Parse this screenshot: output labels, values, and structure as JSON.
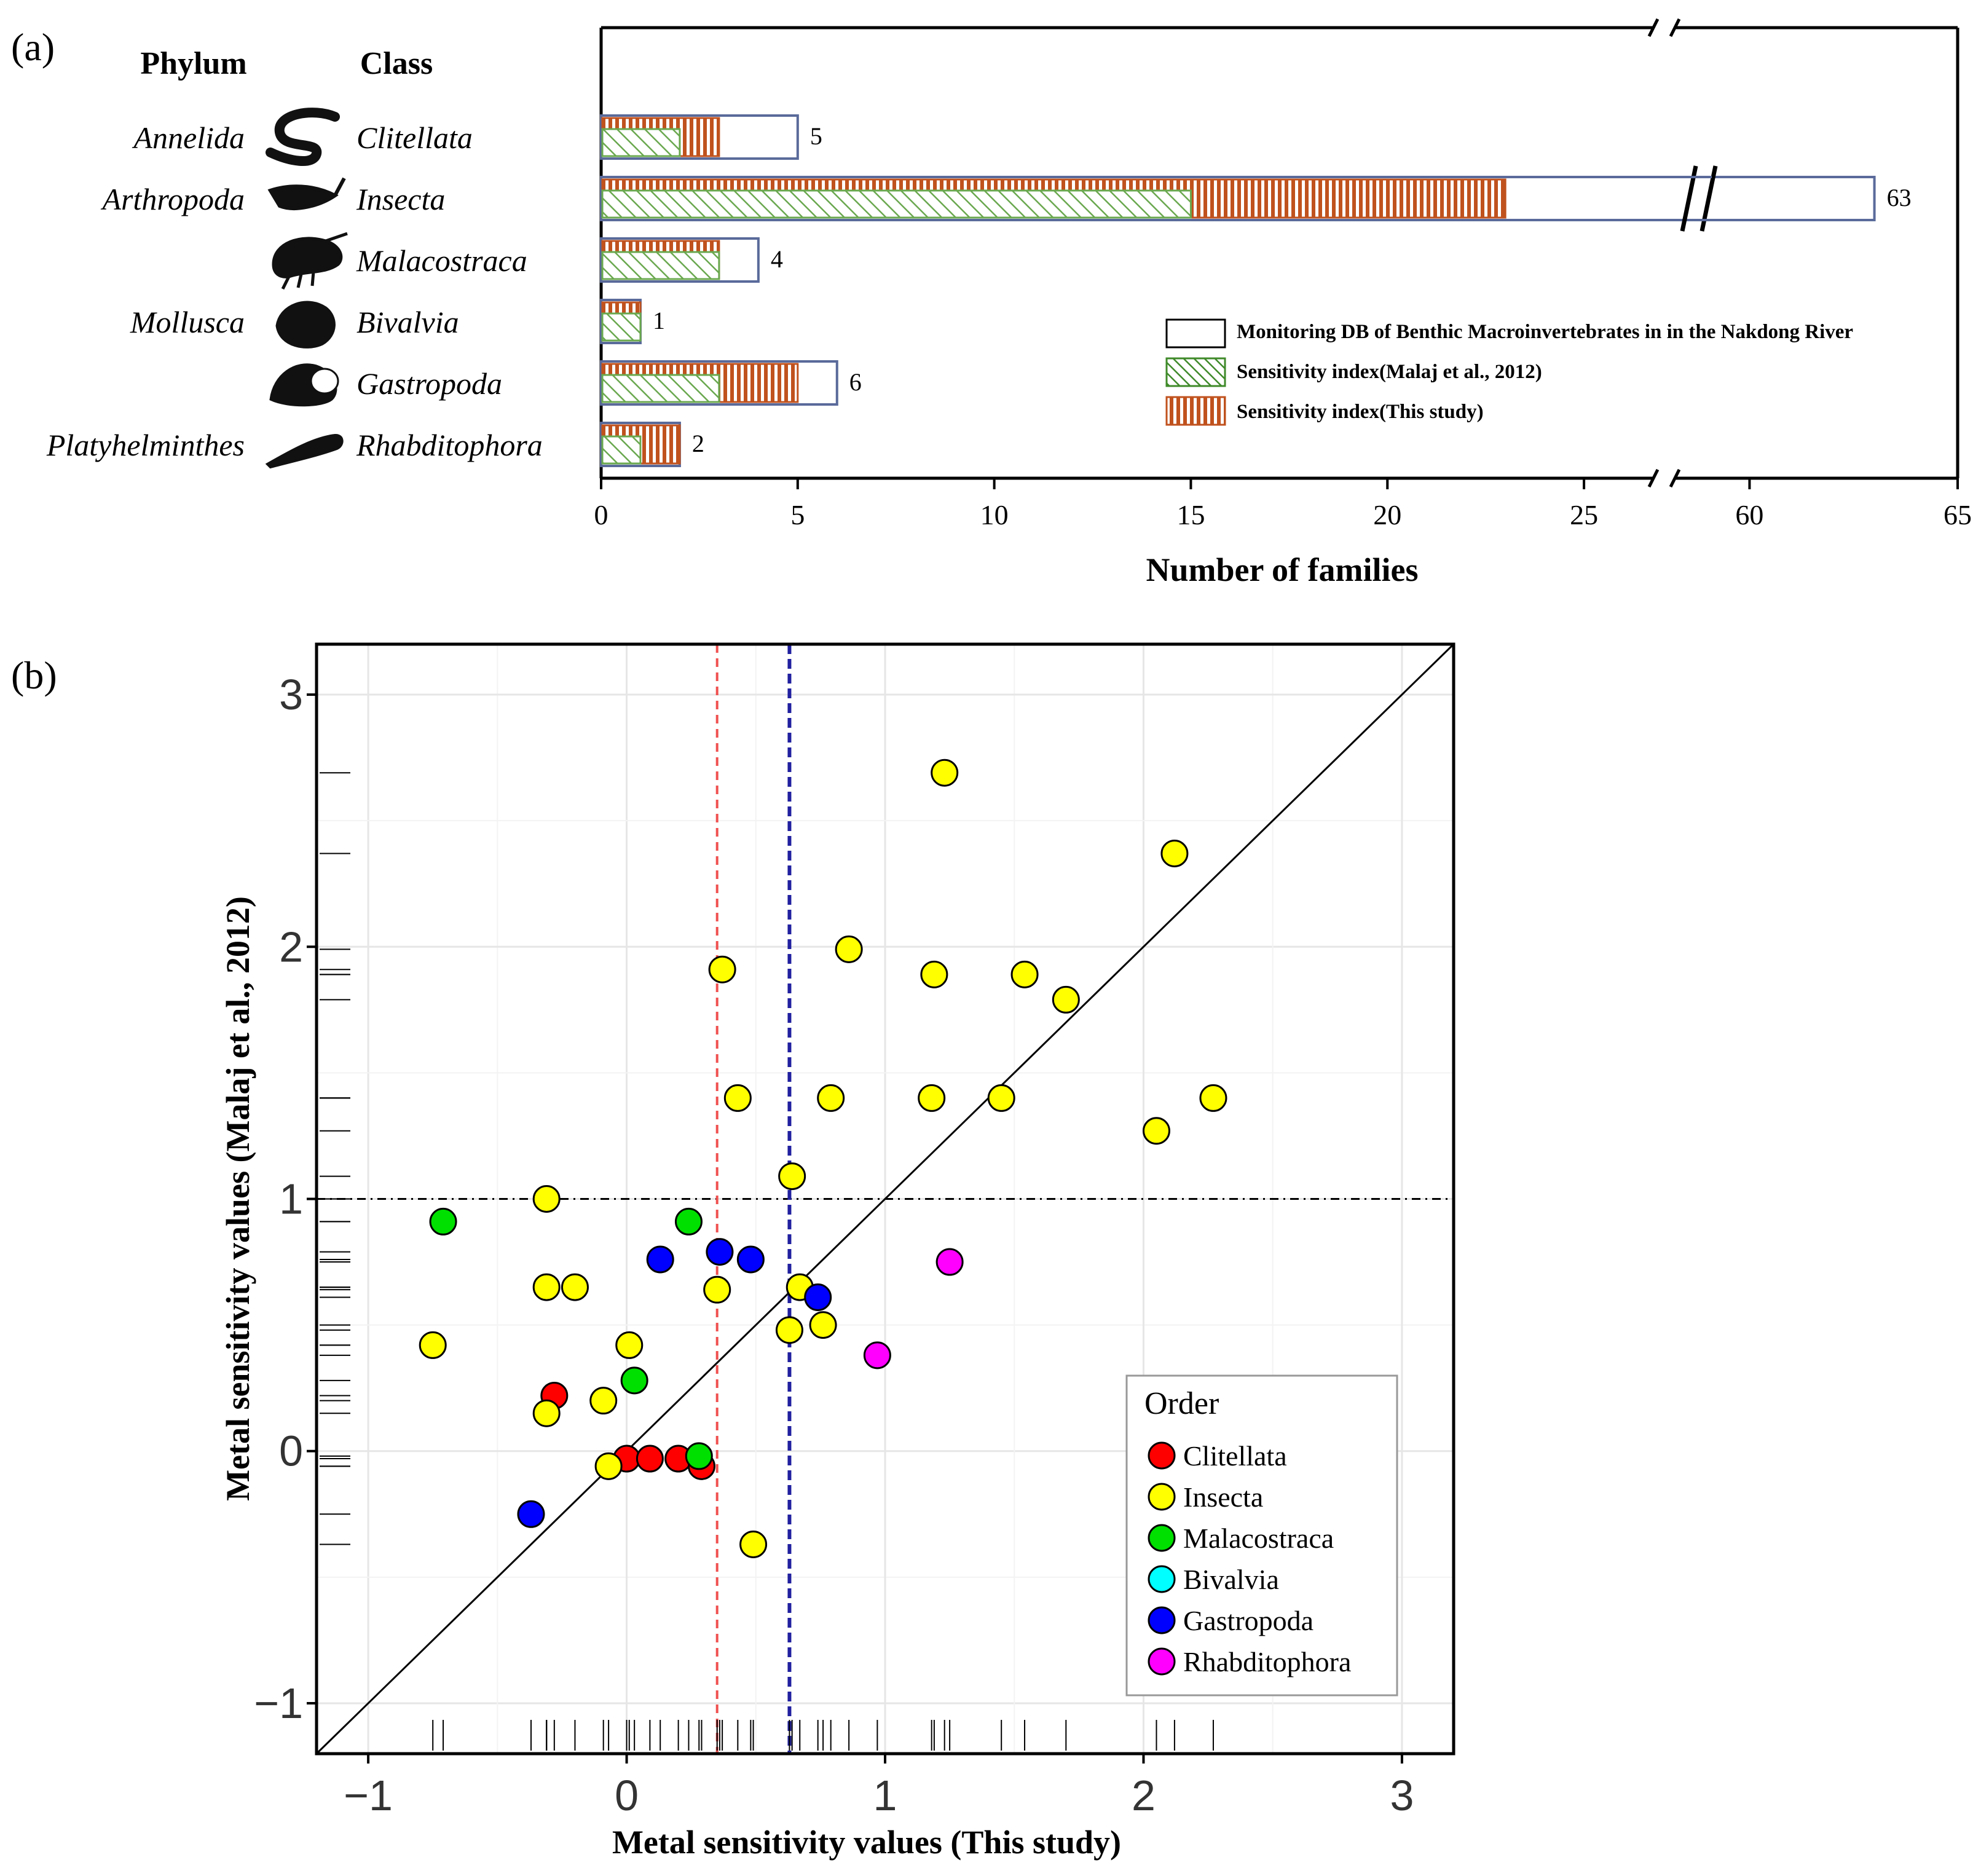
{
  "chart_data": [
    {
      "panel": "(a)",
      "type": "bar",
      "orientation": "horizontal",
      "header_phylum": "Phylum",
      "header_class": "Class",
      "phyla": [
        {
          "name": "Annelida",
          "row": 0
        },
        {
          "name": "Arthropoda",
          "row": 1
        },
        {
          "name": "Mollusca",
          "row": 3
        },
        {
          "name": "Platyhelminthes",
          "row": 5
        }
      ],
      "categories": [
        "Clitellata",
        "Insecta",
        "Malacostraca",
        "Bivalvia",
        "Gastropoda",
        "Rhabditophora"
      ],
      "series": [
        {
          "name": "Monitoring DB of Benthic Macroinvertebrates in in the Nakdong River",
          "values": [
            5,
            63,
            4,
            1,
            6,
            2
          ],
          "style": "white",
          "color": "#5a6a9a"
        },
        {
          "name": "Sensitivity index(Malaj et al., 2012)",
          "values": [
            2,
            15,
            3,
            1,
            3,
            1
          ],
          "style": "diagonal-hatch",
          "color": "#6aa84f"
        },
        {
          "name": "Sensitivity index(This study)",
          "values": [
            3,
            23,
            3,
            1,
            5,
            2
          ],
          "style": "vertical-hatch",
          "color": "#c0521e"
        }
      ],
      "value_labels": [
        "5",
        "63",
        "4",
        "1",
        "6",
        "2"
      ],
      "xlabel": "Number of families",
      "xticks": [
        "0",
        "5",
        "10",
        "15",
        "20",
        "25",
        "60",
        "65"
      ],
      "axis_break": {
        "from": 27,
        "to": 58
      }
    },
    {
      "panel": "(b)",
      "type": "scatter",
      "xlabel": "Metal sensitivity values (This study)",
      "ylabel": "Metal sensitivity values (Malaj et al., 2012)",
      "xlim": [
        -1.2,
        3.2
      ],
      "ylim": [
        -1.2,
        3.2
      ],
      "xticks": [
        "−1",
        "0",
        "1",
        "2",
        "3"
      ],
      "yticks": [
        "−1",
        "0",
        "1",
        "2",
        "3"
      ],
      "reference_lines": {
        "identity": true,
        "horizontal_dashdot_y": 1.0,
        "vertical_red_x": 0.35,
        "vertical_blue_x": 0.63
      },
      "legend_title": "Order",
      "legend_position": "bottom-right",
      "series": [
        {
          "name": "Clitellata",
          "color": "#ff0000",
          "points": [
            [
              -0.28,
              0.22
            ],
            [
              0.0,
              -0.03
            ],
            [
              0.09,
              -0.03
            ],
            [
              0.2,
              -0.03
            ],
            [
              0.29,
              -0.06
            ]
          ]
        },
        {
          "name": "Insecta",
          "color": "#ffff00",
          "points": [
            [
              -0.75,
              0.42
            ],
            [
              -0.31,
              1.0
            ],
            [
              -0.31,
              0.65
            ],
            [
              -0.2,
              0.65
            ],
            [
              -0.31,
              0.15
            ],
            [
              -0.09,
              0.2
            ],
            [
              0.01,
              0.42
            ],
            [
              -0.07,
              -0.06
            ],
            [
              0.37,
              1.91
            ],
            [
              0.43,
              1.4
            ],
            [
              0.35,
              0.64
            ],
            [
              0.49,
              -0.37
            ],
            [
              0.64,
              1.09
            ],
            [
              0.63,
              0.48
            ],
            [
              0.67,
              0.65
            ],
            [
              0.76,
              0.5
            ],
            [
              0.79,
              1.4
            ],
            [
              0.86,
              1.99
            ],
            [
              1.19,
              1.89
            ],
            [
              1.18,
              1.4
            ],
            [
              1.23,
              2.69
            ],
            [
              1.45,
              1.4
            ],
            [
              1.54,
              1.89
            ],
            [
              1.7,
              1.79
            ],
            [
              2.05,
              1.27
            ],
            [
              2.12,
              2.37
            ],
            [
              2.27,
              1.4
            ]
          ]
        },
        {
          "name": "Malacostraca",
          "color": "#00e000",
          "points": [
            [
              -0.71,
              0.91
            ],
            [
              0.24,
              0.91
            ],
            [
              0.03,
              0.28
            ],
            [
              0.28,
              -0.02
            ]
          ]
        },
        {
          "name": "Bivalvia",
          "color": "#00ffff",
          "points": []
        },
        {
          "name": "Gastropoda",
          "color": "#0000ff",
          "points": [
            [
              -0.37,
              -0.25
            ],
            [
              0.13,
              0.76
            ],
            [
              0.36,
              0.79
            ],
            [
              0.48,
              0.76
            ],
            [
              0.74,
              0.61
            ]
          ]
        },
        {
          "name": "Rhabditophora",
          "color": "#ff00ff",
          "points": [
            [
              0.97,
              0.38
            ],
            [
              1.25,
              0.75
            ]
          ]
        }
      ]
    }
  ]
}
